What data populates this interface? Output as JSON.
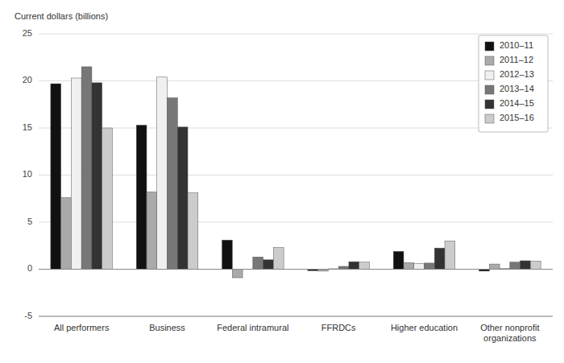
{
  "chart_data": {
    "type": "bar",
    "ylabel": "Current dollars (billions)",
    "categories": [
      "All performers",
      "Business",
      "Federal intramural",
      "FFRDCs",
      "Higher education",
      "Other nonprofit\norganizations"
    ],
    "series": [
      {
        "name": "2010–11",
        "color": "#111111",
        "values": [
          19.7,
          15.3,
          3.1,
          -0.15,
          1.9,
          -0.2
        ]
      },
      {
        "name": "2011–12",
        "color": "#aaaaaa",
        "values": [
          7.6,
          8.2,
          -0.9,
          -0.2,
          0.7,
          0.55
        ]
      },
      {
        "name": "2012–13",
        "color": "#f0f0f0",
        "values": [
          20.3,
          20.4,
          0.0,
          0.05,
          0.6,
          0.1
        ]
      },
      {
        "name": "2013–14",
        "color": "#777777",
        "values": [
          21.5,
          18.2,
          1.3,
          0.3,
          0.65,
          0.75
        ]
      },
      {
        "name": "2014–15",
        "color": "#333333",
        "values": [
          19.8,
          15.1,
          1.0,
          0.8,
          2.25,
          0.9
        ]
      },
      {
        "name": "2015–16",
        "color": "#cccccc",
        "values": [
          15.0,
          8.1,
          2.3,
          0.75,
          3.0,
          0.85
        ]
      }
    ],
    "ylim": [
      -5,
      25
    ],
    "yticks": [
      -5,
      0,
      5,
      10,
      15,
      20,
      25
    ],
    "grid": true,
    "legend": "upper right"
  }
}
